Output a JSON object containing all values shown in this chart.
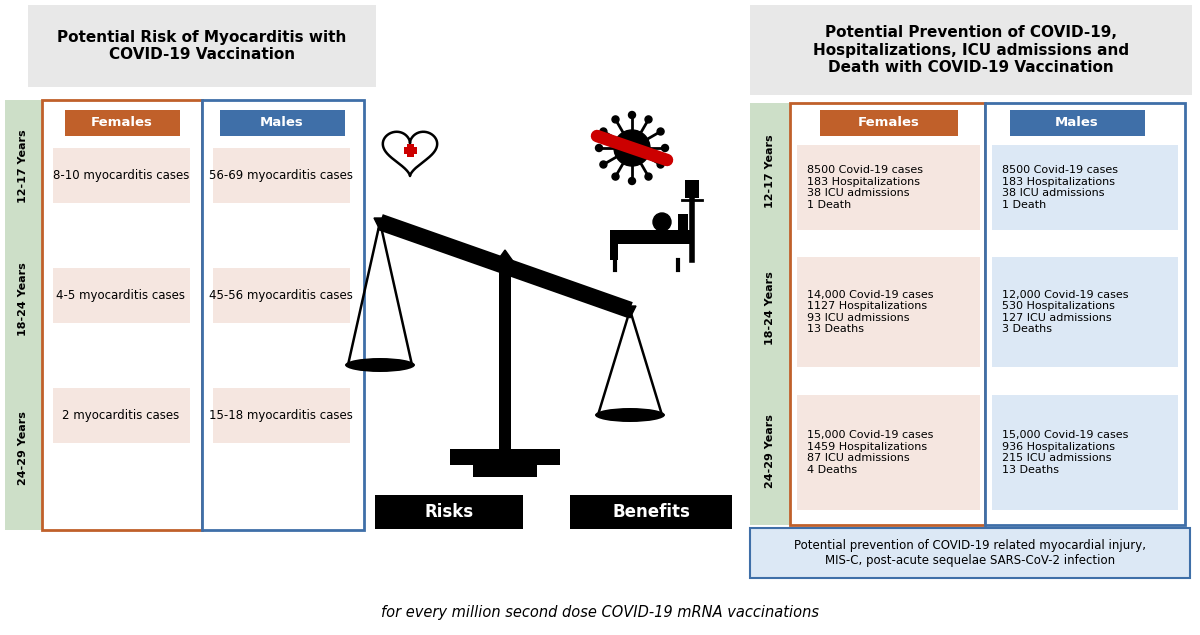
{
  "left_title": "Potential Risk of Myocarditis with\nCOVID-19 Vaccination",
  "right_title": "Potential Prevention of COVID-19,\nHospitalizations, ICU admissions and\nDeath with COVID-19 Vaccination",
  "bottom_text": "for every million second dose COVID-19 mRNA vaccinations",
  "age_groups": [
    "12-17 Years",
    "18-24 Years",
    "24-29 Years"
  ],
  "risk_females": [
    "8-10 myocarditis cases",
    "4-5 myocarditis cases",
    "2 myocarditis cases"
  ],
  "risk_males": [
    "56-69 myocarditis cases",
    "45-56 myocarditis cases",
    "15-18 myocarditis cases"
  ],
  "benefit_females": [
    "8500 Covid-19 cases\n183 Hospitalizations\n38 ICU admissions\n1 Death",
    "14,000 Covid-19 cases\n1127 Hospitalizations\n93 ICU admissions\n13 Deaths",
    "15,000 Covid-19 cases\n1459 Hospitalizations\n87 ICU admissions\n4 Deaths"
  ],
  "benefit_males": [
    "8500 Covid-19 cases\n183 Hospitalizations\n38 ICU admissions\n1 Death",
    "12,000 Covid-19 cases\n530 Hospitalizations\n127 ICU admissions\n3 Deaths",
    "15,000 Covid-19 cases\n936 Hospitalizations\n215 ICU admissions\n13 Deaths"
  ],
  "footer_text": "Potential prevention of COVID-19 related myocardial injury,\nMIS-C, post-acute sequelae SARS-CoV-2 infection",
  "risks_label": "Risks",
  "benefits_label": "Benefits",
  "female_color": "#c0602a",
  "male_color": "#3f6fa8",
  "female_cell_bg": "#f5e6e0",
  "male_cell_bg": "#dce8f5",
  "age_bg": "#cddfc8",
  "header_bg": "#e8e8e8",
  "left_outer_border_female": "#c0602a",
  "right_outer_border_male": "#3f6fa8",
  "footer_box_border": "#3f6fa8",
  "footer_box_bg": "#dce8f5",
  "bg_white": "#ffffff"
}
